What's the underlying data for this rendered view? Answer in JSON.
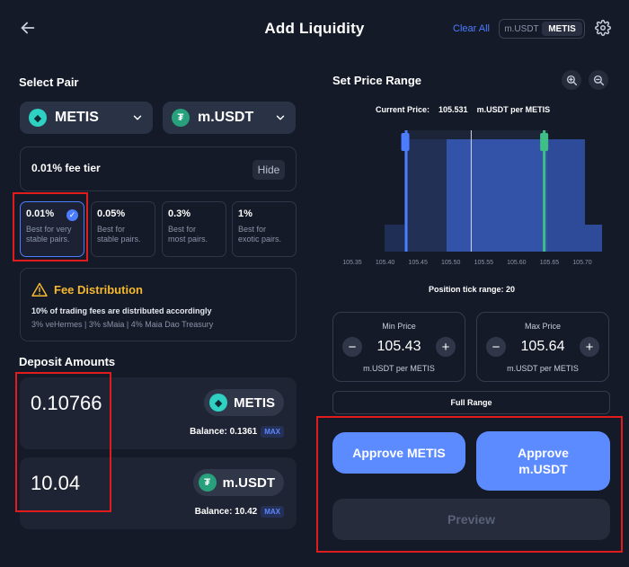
{
  "header": {
    "title": "Add Liquidity",
    "clear_all": "Clear All",
    "toggle": [
      "m.USDT",
      "METIS"
    ]
  },
  "select_pair": {
    "title": "Select Pair",
    "token_a": "METIS",
    "token_b": "m.USDT"
  },
  "fee": {
    "current_tier_label": "0.01% fee tier",
    "hide_label": "Hide",
    "tiers": [
      {
        "pct": "0.01%",
        "desc_line1": "Best for very",
        "desc_line2": "stable pairs.",
        "selected": true
      },
      {
        "pct": "0.05%",
        "desc_line1": "Best for",
        "desc_line2": "stable pairs.",
        "selected": false
      },
      {
        "pct": "0.3%",
        "desc_line1": "Best for",
        "desc_line2": "most pairs.",
        "selected": false
      },
      {
        "pct": "1%",
        "desc_line1": "Best for",
        "desc_line2": "exotic pairs.",
        "selected": false
      }
    ]
  },
  "fee_distribution": {
    "title": "Fee Distribution",
    "line1": "10% of trading fees are distributed accordingly",
    "line2": "3% veHermes | 3% sMaia | 4% Maia Dao Treasury"
  },
  "deposit": {
    "title": "Deposit Amounts",
    "items": [
      {
        "amount": "0.10766",
        "token": "METIS",
        "balance": "Balance: 0.1361",
        "max": "MAX"
      },
      {
        "amount": "10.04",
        "token": "m.USDT",
        "balance": "Balance: 10.42",
        "max": "MAX"
      }
    ]
  },
  "price_range": {
    "title": "Set Price Range",
    "current_price_label": "Current Price:",
    "current_price_value": "105.531",
    "current_price_unit": "m.USDT per METIS",
    "x_ticks": [
      "105.35",
      "105.40",
      "105.45",
      "105.50",
      "105.55",
      "105.60",
      "105.65",
      "105.70"
    ],
    "position_tick_range": "Position tick range: 20",
    "min": {
      "label": "Min Price",
      "value": "105.43",
      "unit": "m.USDT per METIS"
    },
    "max": {
      "label": "Max Price",
      "value": "105.64",
      "unit": "m.USDT per METIS"
    },
    "full_range": "Full Range"
  },
  "chart_data": {
    "type": "area",
    "x": [
      105.35,
      105.4,
      105.45,
      105.5,
      105.55,
      105.6,
      105.65,
      105.7
    ],
    "current_price": 105.531,
    "range_min": 105.43,
    "range_max": 105.64,
    "xlabel": "",
    "ylabel": ""
  },
  "actions": {
    "approve_a": "Approve METIS",
    "approve_b_line1": "Approve",
    "approve_b_line2": "m.USDT",
    "preview": "Preview"
  },
  "colors": {
    "accent": "#5b8bff",
    "highlight_box": "#e01c1c",
    "warning": "#f5b82e",
    "range_min_handle": "#4c7dff",
    "range_max_handle": "#3fbf86"
  }
}
